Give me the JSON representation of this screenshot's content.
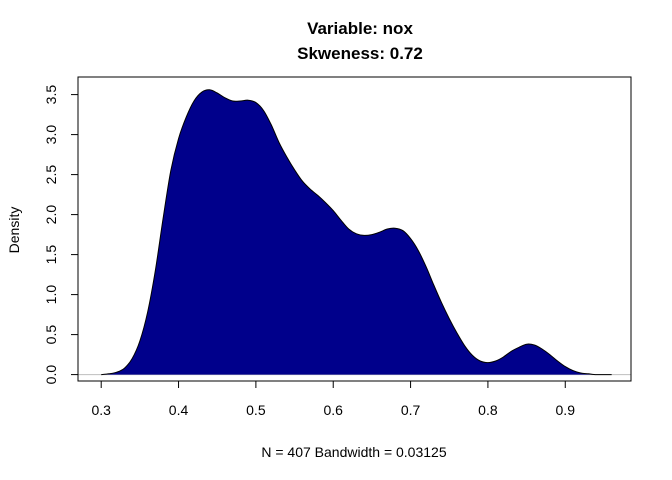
{
  "chart_data": {
    "type": "area",
    "title_line1": "Variable: nox",
    "title_line2": "Skweness: 0.72",
    "xlabel": "N = 407   Bandwidth = 0.03125",
    "ylabel": "Density",
    "xlim": [
      0.27,
      0.985
    ],
    "ylim": [
      -0.08,
      3.72
    ],
    "x_ticks": [
      "0.3",
      "0.4",
      "0.5",
      "0.6",
      "0.7",
      "0.8",
      "0.9"
    ],
    "y_ticks": [
      "0.0",
      "0.5",
      "1.0",
      "1.5",
      "2.0",
      "2.5",
      "3.0",
      "3.5"
    ],
    "fill_color": "#00008B",
    "baseline_color": "#BEBEBE",
    "grid": false,
    "series": [
      {
        "x": [
          0.3,
          0.31,
          0.32,
          0.33,
          0.34,
          0.35,
          0.36,
          0.37,
          0.38,
          0.39,
          0.4,
          0.41,
          0.42,
          0.43,
          0.44,
          0.45,
          0.46,
          0.47,
          0.48,
          0.49,
          0.5,
          0.51,
          0.52,
          0.53,
          0.54,
          0.55,
          0.56,
          0.57,
          0.58,
          0.59,
          0.6,
          0.61,
          0.62,
          0.63,
          0.64,
          0.65,
          0.66,
          0.67,
          0.68,
          0.69,
          0.7,
          0.71,
          0.72,
          0.73,
          0.74,
          0.75,
          0.76,
          0.77,
          0.78,
          0.79,
          0.8,
          0.81,
          0.82,
          0.83,
          0.84,
          0.85,
          0.86,
          0.87,
          0.88,
          0.89,
          0.9,
          0.91,
          0.92,
          0.93,
          0.94,
          0.95,
          0.96
        ],
        "y": [
          0.0,
          0.01,
          0.03,
          0.08,
          0.2,
          0.42,
          0.78,
          1.3,
          1.95,
          2.55,
          2.95,
          3.22,
          3.42,
          3.53,
          3.56,
          3.52,
          3.46,
          3.42,
          3.42,
          3.43,
          3.4,
          3.3,
          3.12,
          2.9,
          2.72,
          2.56,
          2.42,
          2.32,
          2.24,
          2.15,
          2.05,
          1.93,
          1.82,
          1.76,
          1.74,
          1.75,
          1.78,
          1.82,
          1.83,
          1.8,
          1.7,
          1.55,
          1.35,
          1.12,
          0.9,
          0.7,
          0.52,
          0.36,
          0.24,
          0.17,
          0.15,
          0.17,
          0.22,
          0.29,
          0.34,
          0.38,
          0.37,
          0.32,
          0.25,
          0.17,
          0.1,
          0.05,
          0.02,
          0.01,
          0.0,
          0.0,
          0.0
        ]
      }
    ]
  }
}
